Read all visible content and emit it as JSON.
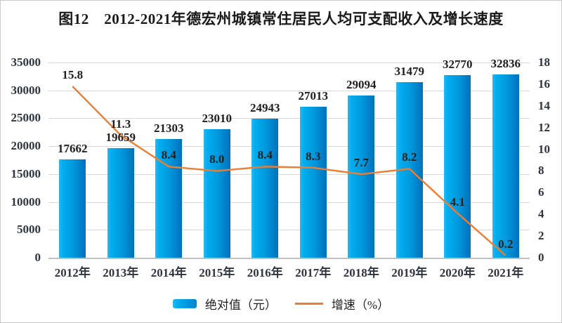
{
  "chart_data": {
    "type": "bar+line",
    "title": "图12　2012-2021年德宏州城镇常住居民人均可支配收入及增长速度",
    "categories": [
      "2012年",
      "2013年",
      "2014年",
      "2015年",
      "2016年",
      "2017年",
      "2018年",
      "2019年",
      "2020年",
      "2021年"
    ],
    "series": [
      {
        "name": "绝对值（元）",
        "type": "bar",
        "axis": "left",
        "values": [
          17662,
          19659,
          21303,
          23010,
          24943,
          27013,
          29094,
          31479,
          32770,
          32836
        ],
        "labels": [
          "17662",
          "19659",
          "21303",
          "23010",
          "24943",
          "27013",
          "29094",
          "31479",
          "32770",
          "32836"
        ]
      },
      {
        "name": "增速（%）",
        "type": "line",
        "axis": "right",
        "values": [
          15.8,
          11.3,
          8.4,
          8.0,
          8.4,
          8.3,
          7.7,
          8.2,
          4.1,
          0.2
        ],
        "labels": [
          "15.8",
          "11.3",
          "8.4",
          "8.0",
          "8.4",
          "8.3",
          "7.7",
          "8.2",
          "4.1",
          "0.2"
        ]
      }
    ],
    "left_axis": {
      "min": 0,
      "max": 35000,
      "step": 5000,
      "ticks": [
        "35000",
        "30000",
        "25000",
        "20000",
        "15000",
        "10000",
        "5000",
        "0"
      ]
    },
    "right_axis": {
      "min": 0,
      "max": 18,
      "step": 2,
      "ticks": [
        "18",
        "16",
        "14",
        "12",
        "10",
        "8",
        "6",
        "4",
        "2",
        "0"
      ]
    },
    "legend": [
      "绝对值（元）",
      "增速（%）"
    ],
    "legend_position": "bottom",
    "grid": true,
    "colors": {
      "bar_light": "#00aeef",
      "bar_dark": "#0070bc",
      "line": "#ed7d31",
      "grid": "#d9d9d9",
      "axis_line": "#bfbfbf",
      "text": "#1f1f1f"
    }
  }
}
